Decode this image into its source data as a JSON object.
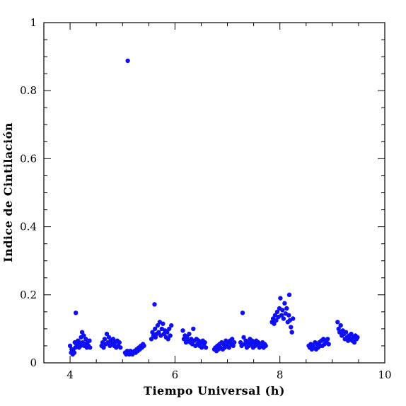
{
  "chart_data": {
    "type": "scatter",
    "title": "",
    "xlabel": "Tiempo Universal (h)",
    "ylabel": "Indice de Cintilación",
    "xlim": [
      3.5,
      10
    ],
    "ylim": [
      0,
      1
    ],
    "x_ticks": [
      {
        "v": 4,
        "label": "4"
      },
      {
        "v": 6,
        "label": "6"
      },
      {
        "v": 8,
        "label": "8"
      },
      {
        "v": 10,
        "label": "10"
      }
    ],
    "y_ticks": [
      {
        "v": 0,
        "label": "0"
      },
      {
        "v": 0.2,
        "label": "0.2"
      },
      {
        "v": 0.4,
        "label": "0.4"
      },
      {
        "v": 0.6,
        "label": "0.6"
      },
      {
        "v": 0.8,
        "label": "0.8"
      },
      {
        "v": 1,
        "label": "1"
      }
    ],
    "grid": false,
    "marker_color": "#0f0ff5",
    "points": [
      [
        4.0,
        0.05
      ],
      [
        4.02,
        0.03
      ],
      [
        4.03,
        0.04
      ],
      [
        4.05,
        0.025
      ],
      [
        4.06,
        0.035
      ],
      [
        4.08,
        0.03
      ],
      [
        4.09,
        0.06
      ],
      [
        4.1,
        0.045
      ],
      [
        4.11,
        0.147
      ],
      [
        4.12,
        0.055
      ],
      [
        4.14,
        0.05
      ],
      [
        4.15,
        0.065
      ],
      [
        4.17,
        0.045
      ],
      [
        4.18,
        0.06
      ],
      [
        4.2,
        0.05
      ],
      [
        4.21,
        0.075
      ],
      [
        4.23,
        0.09
      ],
      [
        4.24,
        0.06
      ],
      [
        4.26,
        0.08
      ],
      [
        4.27,
        0.05
      ],
      [
        4.29,
        0.055
      ],
      [
        4.3,
        0.07
      ],
      [
        4.32,
        0.045
      ],
      [
        4.33,
        0.06
      ],
      [
        4.35,
        0.05
      ],
      [
        4.37,
        0.065
      ],
      [
        4.38,
        0.045
      ],
      [
        4.6,
        0.05
      ],
      [
        4.62,
        0.06
      ],
      [
        4.64,
        0.045
      ],
      [
        4.66,
        0.07
      ],
      [
        4.68,
        0.055
      ],
      [
        4.7,
        0.085
      ],
      [
        4.72,
        0.06
      ],
      [
        4.74,
        0.075
      ],
      [
        4.76,
        0.05
      ],
      [
        4.78,
        0.065
      ],
      [
        4.8,
        0.055
      ],
      [
        4.82,
        0.07
      ],
      [
        4.84,
        0.05
      ],
      [
        4.86,
        0.06
      ],
      [
        4.88,
        0.045
      ],
      [
        4.9,
        0.065
      ],
      [
        4.92,
        0.05
      ],
      [
        4.94,
        0.06
      ],
      [
        4.96,
        0.045
      ],
      [
        5.05,
        0.03
      ],
      [
        5.07,
        0.025
      ],
      [
        5.09,
        0.035
      ],
      [
        5.1,
        0.888
      ],
      [
        5.11,
        0.03
      ],
      [
        5.13,
        0.025
      ],
      [
        5.15,
        0.035
      ],
      [
        5.17,
        0.03
      ],
      [
        5.19,
        0.025
      ],
      [
        5.21,
        0.03
      ],
      [
        5.23,
        0.035
      ],
      [
        5.25,
        0.03
      ],
      [
        5.27,
        0.04
      ],
      [
        5.29,
        0.035
      ],
      [
        5.31,
        0.045
      ],
      [
        5.33,
        0.04
      ],
      [
        5.35,
        0.05
      ],
      [
        5.37,
        0.045
      ],
      [
        5.39,
        0.055
      ],
      [
        5.41,
        0.05
      ],
      [
        5.55,
        0.07
      ],
      [
        5.57,
        0.09
      ],
      [
        5.59,
        0.08
      ],
      [
        5.61,
        0.172
      ],
      [
        5.62,
        0.1
      ],
      [
        5.63,
        0.075
      ],
      [
        5.65,
        0.085
      ],
      [
        5.67,
        0.11
      ],
      [
        5.69,
        0.09
      ],
      [
        5.71,
        0.12
      ],
      [
        5.73,
        0.08
      ],
      [
        5.75,
        0.1
      ],
      [
        5.77,
        0.115
      ],
      [
        5.79,
        0.085
      ],
      [
        5.81,
        0.095
      ],
      [
        5.83,
        0.075
      ],
      [
        5.85,
        0.09
      ],
      [
        5.87,
        0.07
      ],
      [
        5.89,
        0.1
      ],
      [
        5.91,
        0.08
      ],
      [
        5.93,
        0.11
      ],
      [
        6.15,
        0.095
      ],
      [
        6.17,
        0.07
      ],
      [
        6.19,
        0.08
      ],
      [
        6.21,
        0.06
      ],
      [
        6.23,
        0.075
      ],
      [
        6.25,
        0.065
      ],
      [
        6.27,
        0.085
      ],
      [
        6.29,
        0.06
      ],
      [
        6.31,
        0.07
      ],
      [
        6.33,
        0.055
      ],
      [
        6.35,
        0.1
      ],
      [
        6.37,
        0.065
      ],
      [
        6.39,
        0.05
      ],
      [
        6.41,
        0.07
      ],
      [
        6.43,
        0.055
      ],
      [
        6.45,
        0.065
      ],
      [
        6.47,
        0.05
      ],
      [
        6.49,
        0.06
      ],
      [
        6.51,
        0.045
      ],
      [
        6.53,
        0.065
      ],
      [
        6.55,
        0.055
      ],
      [
        6.57,
        0.06
      ],
      [
        6.59,
        0.045
      ],
      [
        6.75,
        0.04
      ],
      [
        6.77,
        0.045
      ],
      [
        6.79,
        0.035
      ],
      [
        6.81,
        0.05
      ],
      [
        6.83,
        0.04
      ],
      [
        6.85,
        0.055
      ],
      [
        6.87,
        0.045
      ],
      [
        6.89,
        0.06
      ],
      [
        6.91,
        0.04
      ],
      [
        6.93,
        0.055
      ],
      [
        6.95,
        0.045
      ],
      [
        6.97,
        0.065
      ],
      [
        6.99,
        0.05
      ],
      [
        7.01,
        0.06
      ],
      [
        7.03,
        0.045
      ],
      [
        7.05,
        0.065
      ],
      [
        7.07,
        0.055
      ],
      [
        7.09,
        0.07
      ],
      [
        7.11,
        0.05
      ],
      [
        7.13,
        0.06
      ],
      [
        7.25,
        0.06
      ],
      [
        7.27,
        0.05
      ],
      [
        7.29,
        0.147
      ],
      [
        7.31,
        0.075
      ],
      [
        7.33,
        0.055
      ],
      [
        7.35,
        0.065
      ],
      [
        7.37,
        0.045
      ],
      [
        7.39,
        0.06
      ],
      [
        7.41,
        0.05
      ],
      [
        7.43,
        0.07
      ],
      [
        7.45,
        0.055
      ],
      [
        7.47,
        0.065
      ],
      [
        7.49,
        0.045
      ],
      [
        7.51,
        0.06
      ],
      [
        7.53,
        0.05
      ],
      [
        7.55,
        0.065
      ],
      [
        7.57,
        0.055
      ],
      [
        7.59,
        0.06
      ],
      [
        7.61,
        0.045
      ],
      [
        7.63,
        0.055
      ],
      [
        7.65,
        0.05
      ],
      [
        7.67,
        0.06
      ],
      [
        7.69,
        0.045
      ],
      [
        7.71,
        0.055
      ],
      [
        7.73,
        0.05
      ],
      [
        7.85,
        0.12
      ],
      [
        7.87,
        0.13
      ],
      [
        7.89,
        0.115
      ],
      [
        7.91,
        0.14
      ],
      [
        7.93,
        0.125
      ],
      [
        7.95,
        0.15
      ],
      [
        7.97,
        0.135
      ],
      [
        7.99,
        0.16
      ],
      [
        8.01,
        0.19
      ],
      [
        8.03,
        0.14
      ],
      [
        8.05,
        0.155
      ],
      [
        8.07,
        0.13
      ],
      [
        8.09,
        0.175
      ],
      [
        8.11,
        0.145
      ],
      [
        8.13,
        0.16
      ],
      [
        8.15,
        0.12
      ],
      [
        8.17,
        0.14
      ],
      [
        8.18,
        0.2
      ],
      [
        8.19,
        0.125
      ],
      [
        8.21,
        0.105
      ],
      [
        8.23,
        0.09
      ],
      [
        8.25,
        0.13
      ],
      [
        8.55,
        0.05
      ],
      [
        8.57,
        0.045
      ],
      [
        8.59,
        0.055
      ],
      [
        8.61,
        0.04
      ],
      [
        8.63,
        0.05
      ],
      [
        8.65,
        0.045
      ],
      [
        8.67,
        0.06
      ],
      [
        8.69,
        0.04
      ],
      [
        8.71,
        0.055
      ],
      [
        8.73,
        0.045
      ],
      [
        8.75,
        0.06
      ],
      [
        8.77,
        0.05
      ],
      [
        8.79,
        0.065
      ],
      [
        8.81,
        0.05
      ],
      [
        8.83,
        0.07
      ],
      [
        8.85,
        0.055
      ],
      [
        8.87,
        0.065
      ],
      [
        8.89,
        0.06
      ],
      [
        8.91,
        0.07
      ],
      [
        8.93,
        0.055
      ],
      [
        9.1,
        0.12
      ],
      [
        9.12,
        0.1
      ],
      [
        9.14,
        0.09
      ],
      [
        9.16,
        0.11
      ],
      [
        9.18,
        0.08
      ],
      [
        9.2,
        0.095
      ],
      [
        9.22,
        0.085
      ],
      [
        9.24,
        0.07
      ],
      [
        9.26,
        0.09
      ],
      [
        9.28,
        0.075
      ],
      [
        9.3,
        0.065
      ],
      [
        9.32,
        0.08
      ],
      [
        9.34,
        0.07
      ],
      [
        9.36,
        0.085
      ],
      [
        9.38,
        0.065
      ],
      [
        9.4,
        0.075
      ],
      [
        9.42,
        0.06
      ],
      [
        9.44,
        0.08
      ],
      [
        9.46,
        0.07
      ],
      [
        9.48,
        0.075
      ]
    ]
  }
}
